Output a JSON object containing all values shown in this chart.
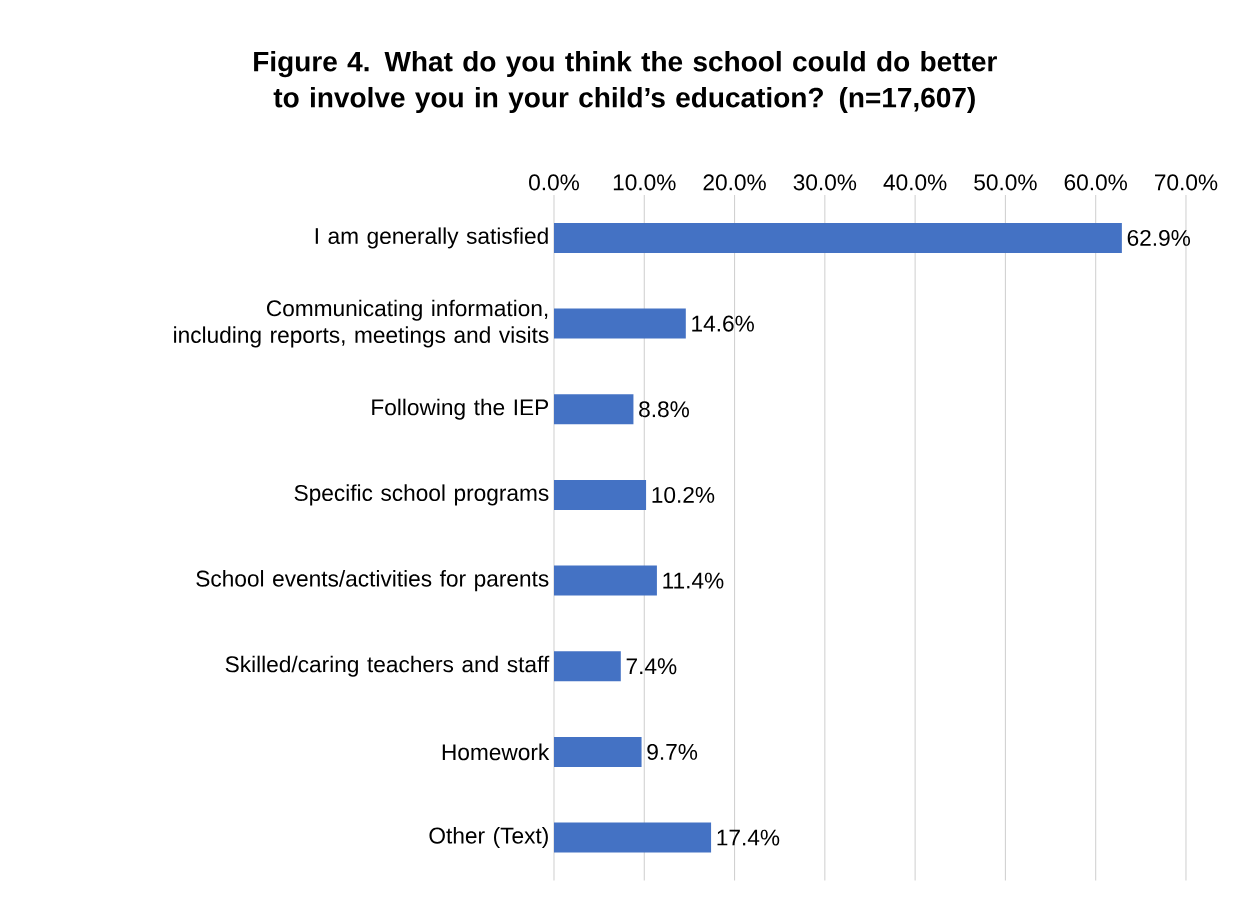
{
  "chart_data": {
    "type": "bar",
    "orientation": "horizontal",
    "title": "Figure 4. What do you think the school could do better to involve you in your child’s education? (n=17,607)",
    "categories": [
      "I am generally satisfied",
      "Communicating information, including reports, meetings and visits",
      "Following the IEP",
      "Specific school programs",
      "School events/activities for parents",
      "Skilled/caring teachers and staff",
      "Homework",
      "Other (Text)"
    ],
    "values": [
      62.9,
      14.6,
      8.8,
      10.2,
      11.4,
      7.4,
      9.7,
      17.4
    ],
    "value_labels": [
      "62.9%",
      "14.6%",
      "8.8%",
      "10.2%",
      "11.4%",
      "7.4%",
      "9.7%",
      "17.4%"
    ],
    "color": "#4472c4",
    "xlim": [
      0,
      70
    ],
    "xticks": [
      {
        "value": 0,
        "label": "0.0%"
      },
      {
        "value": 10,
        "label": "10.0%"
      },
      {
        "value": 20,
        "label": "20.0%"
      },
      {
        "value": 30,
        "label": "30.0%"
      },
      {
        "value": 40,
        "label": "40.0%"
      },
      {
        "value": 50,
        "label": "50.0%"
      },
      {
        "value": 60,
        "label": "60.0%"
      },
      {
        "value": 70,
        "label": "70.0%"
      }
    ],
    "grid": "x"
  }
}
